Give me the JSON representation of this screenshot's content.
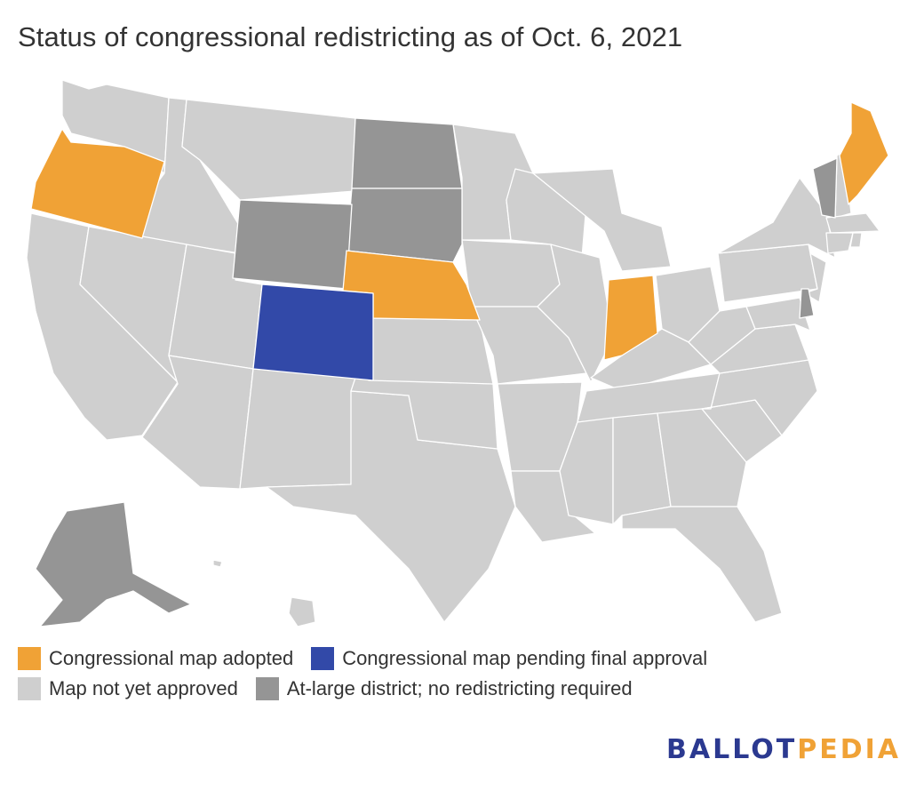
{
  "title": "Status of congressional redistricting as of Oct. 6, 2021",
  "colors": {
    "adopted": "#f0a236",
    "pending": "#3249a8",
    "not_approved": "#cfcfcf",
    "at_large": "#959595",
    "brand_blue": "#2b3990",
    "brand_orange": "#f0a236"
  },
  "legend": [
    {
      "label": "Congressional map adopted",
      "status": "adopted"
    },
    {
      "label": "Congressional map pending final approval",
      "status": "pending"
    },
    {
      "label": "Map not yet approved",
      "status": "not_approved"
    },
    {
      "label": "At-large district; no redistricting required",
      "status": "at_large"
    }
  ],
  "states_by_status": {
    "adopted": [
      "Oregon",
      "Nebraska",
      "Indiana",
      "Maine"
    ],
    "pending": [
      "Colorado"
    ],
    "at_large": [
      "North Dakota",
      "South Dakota",
      "Wyoming",
      "Vermont",
      "Delaware",
      "Alaska"
    ],
    "not_approved": [
      "all other states"
    ]
  },
  "brand": {
    "part1": "BALLOT",
    "part2": "PEDIA"
  }
}
